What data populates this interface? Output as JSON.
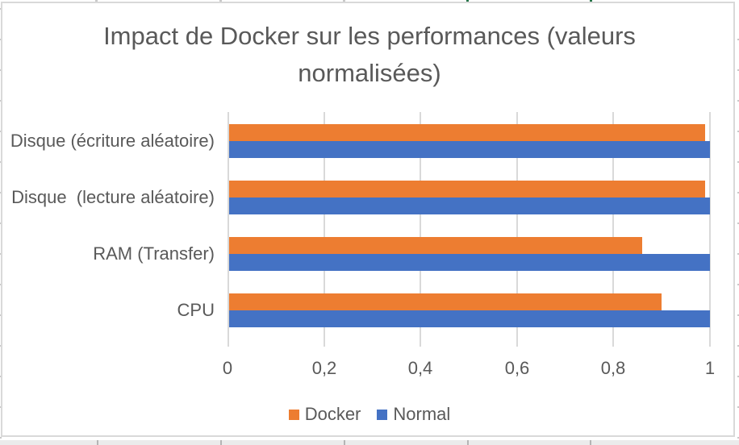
{
  "chart_data": {
    "type": "bar",
    "orientation": "horizontal",
    "title": "Impact de Docker sur les performances (valeurs normalisées)",
    "categories": [
      "Disque (écriture aléatoire)",
      "Disque  (lecture aléatoire)",
      "RAM (Transfer)",
      "CPU"
    ],
    "category_order": "top-to-bottom",
    "series": [
      {
        "name": "Docker",
        "color": "#ED7D31",
        "values": [
          0.99,
          0.99,
          0.86,
          0.9
        ]
      },
      {
        "name": "Normal",
        "color": "#4472C4",
        "values": [
          1.0,
          1.0,
          1.0,
          1.0
        ]
      }
    ],
    "xlim": [
      0,
      1
    ],
    "x_ticks": [
      {
        "value": 0,
        "label": "0"
      },
      {
        "value": 0.2,
        "label": "0,2"
      },
      {
        "value": 0.4,
        "label": "0,4"
      },
      {
        "value": 0.6,
        "label": "0,6"
      },
      {
        "value": 0.8,
        "label": "0,8"
      },
      {
        "value": 1,
        "label": "1"
      }
    ],
    "grid": true,
    "legend_position": "bottom",
    "legend": [
      "Docker",
      "Normal"
    ]
  },
  "colors": {
    "series_docker": "#ED7D31",
    "series_normal": "#4472C4",
    "text": "#595959",
    "gridline": "#D9D9D9",
    "chart_border": "#D9D9D9",
    "excel_stub_gray": "#C9C9C9",
    "excel_mark_green": "#217346",
    "bottom_strip_bg": "#EBEBEB"
  }
}
